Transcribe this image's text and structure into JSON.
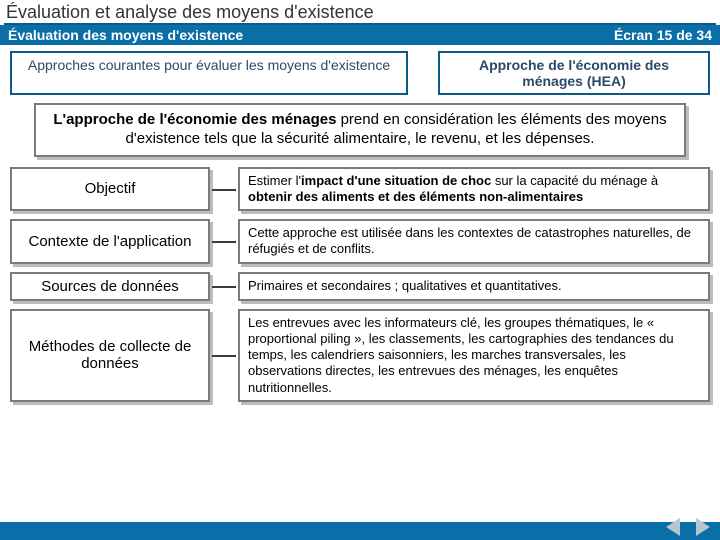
{
  "page_title": "Évaluation et analyse des moyens d'existence",
  "band": {
    "left": "Évaluation des moyens d'existence",
    "right": "Écran 15 de 34"
  },
  "tabs": {
    "left": "Approches courantes pour évaluer les moyens d'existence",
    "right": "Approche de l'économie des ménages (HEA)"
  },
  "intro": {
    "pre": "L'approche de l'économie des ménages",
    "post": " prend en considération les éléments des moyens d'existence tels que la sécurité alimentaire, le revenu, et les dépenses."
  },
  "rows": [
    {
      "label": "Objectif",
      "desc_parts": [
        "Estimer l'",
        "impact d'une situation de choc",
        " sur la capacité du ménage à ",
        "obtenir des aliments et des éléments non-alimentaires",
        ""
      ]
    },
    {
      "label": "Contexte de l'application",
      "desc": "Cette approche est utilisée dans les contextes de catastrophes naturelles, de réfugiés et de conflits."
    },
    {
      "label": "Sources de données",
      "desc": "Primaires et secondaires ; qualitatives et quantitatives."
    },
    {
      "label": "Méthodes de collecte de données",
      "desc": "Les entrevues avec les informateurs clé, les groupes thématiques, le « proportional piling », les classements, les cartographies des tendances du temps, les calendriers saisonniers, les marches transversales, les observations directes, les entrevues des ménages, les enquêtes nutritionnelles."
    }
  ],
  "colors": {
    "brand": "#0a6fa8",
    "underline": "#0a5a8a",
    "box_border": "#7a7a7a",
    "shadow": "#bdbdbd",
    "arrow": "#b8c5cc"
  }
}
